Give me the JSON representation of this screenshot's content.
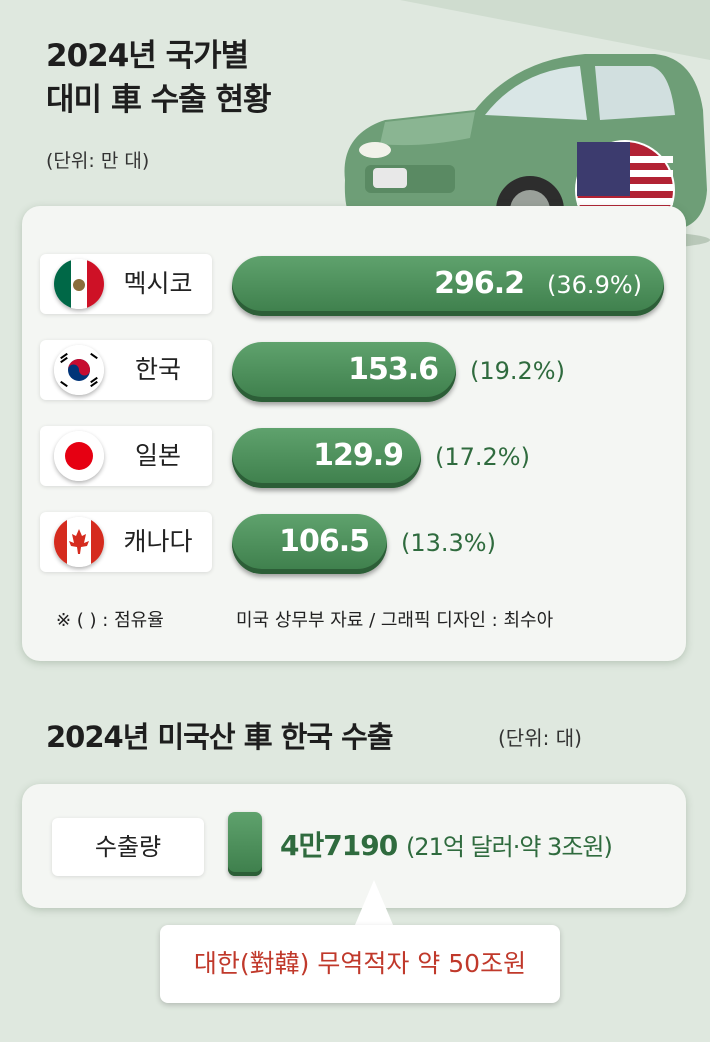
{
  "title_line1": "2024년 국가별",
  "title_line2": "대미 車 수출 현황",
  "unit_top": "(단위: 만 대)",
  "chart_data": {
    "type": "bar",
    "orientation": "horizontal",
    "categories": [
      "멕시코",
      "한국",
      "일본",
      "캐나다"
    ],
    "values": [
      296.2,
      153.6,
      129.9,
      106.5
    ],
    "shares_pct": [
      36.9,
      19.2,
      17.2,
      13.3
    ],
    "value_labels": [
      "296.2",
      "153.6",
      "129.9",
      "106.5"
    ],
    "share_labels": [
      "(36.9%)",
      "(19.2%)",
      "(17.2%)",
      "(13.3%)"
    ],
    "ylabel": "(단위: 만 대)",
    "flags": [
      "mexico-flag-icon",
      "south-korea-flag-icon",
      "japan-flag-icon",
      "canada-flag-icon"
    ]
  },
  "note_left": "※ ( ) : 점유율",
  "note_right": "미국 상무부 자료 / 그래픽 디자인 : 최수아",
  "section2": {
    "title": "2024년 미국산 車 한국 수출",
    "unit": "(단위: 대)",
    "label": "수출량",
    "value": "4만7190",
    "sub": "(21억 달러·약 3조원)",
    "callout": "대한(對韓) 무역적자 약 50조원"
  },
  "colors": {
    "bar": "#4a8c58",
    "accent_text": "#2f6b3e",
    "callout_text": "#c0392b",
    "background": "#dfe8df"
  }
}
